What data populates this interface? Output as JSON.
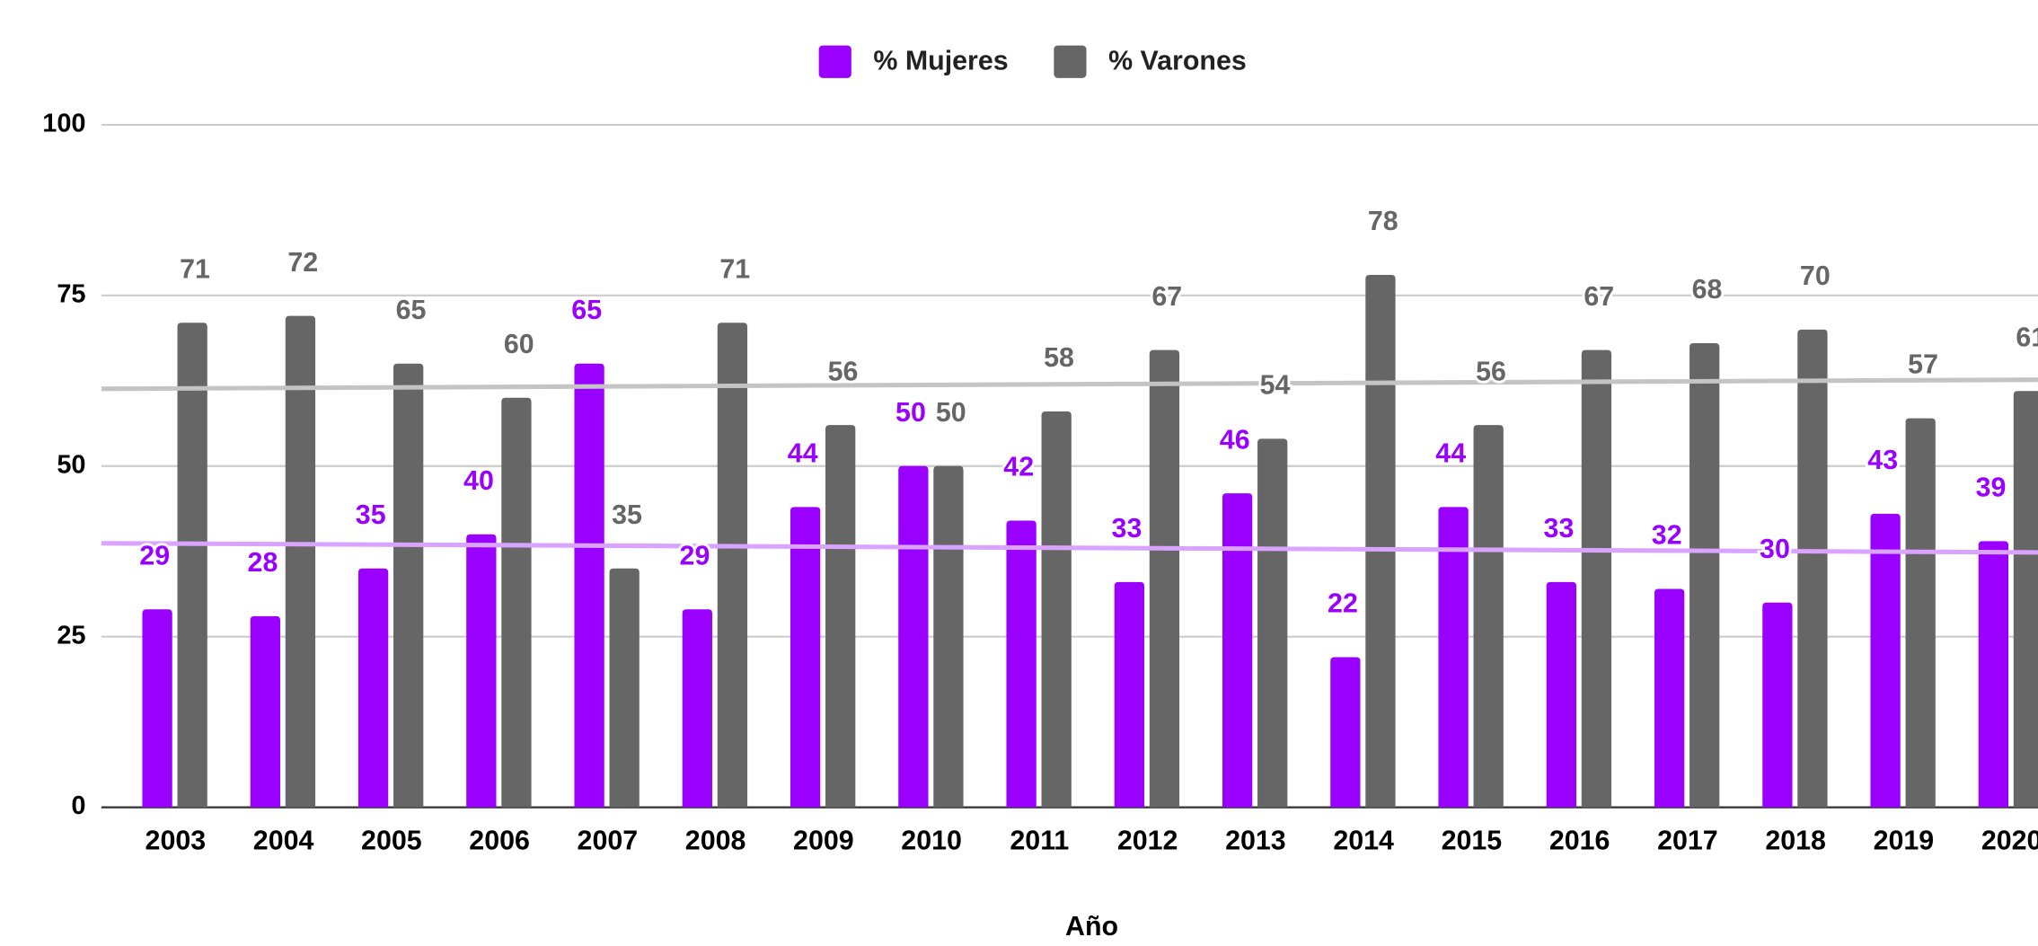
{
  "chart_data": {
    "type": "bar",
    "x_label": "Año",
    "categories": [
      "2003",
      "2004",
      "2005",
      "2006",
      "2007",
      "2008",
      "2009",
      "2010",
      "2011",
      "2012",
      "2013",
      "2014",
      "2015",
      "2016",
      "2017",
      "2018",
      "2019",
      "2020"
    ],
    "series": [
      {
        "name": "% Mujeres",
        "color": "#9900ff",
        "trendline": true,
        "trendline_color": "#d9a3ff",
        "values": [
          29,
          28,
          35,
          40,
          65,
          29,
          44,
          50,
          42,
          33,
          46,
          22,
          44,
          33,
          32,
          30,
          43,
          39
        ]
      },
      {
        "name": "% Varones",
        "color": "#666666",
        "trendline": true,
        "trendline_color": "#c4c4c4",
        "values": [
          71,
          72,
          65,
          60,
          35,
          71,
          56,
          50,
          58,
          67,
          54,
          78,
          56,
          67,
          68,
          70,
          57,
          61
        ]
      }
    ],
    "ylim": [
      0,
      100
    ],
    "yticks": [
      0,
      25,
      50,
      75,
      100
    ],
    "grid": true,
    "data_labels": true,
    "legend": "top"
  }
}
